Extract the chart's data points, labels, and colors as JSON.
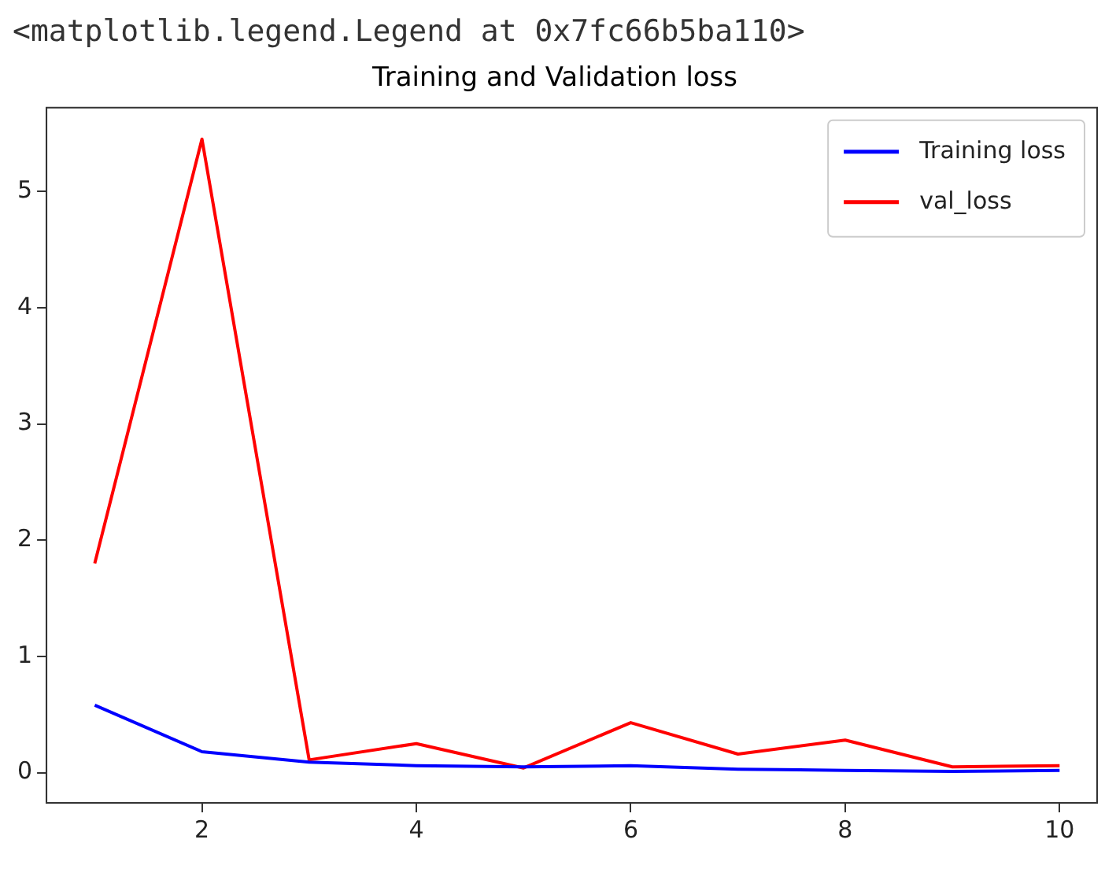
{
  "chart_data": {
    "type": "line",
    "title": "Training and Validation loss",
    "annotations": [
      "<matplotlib.legend.Legend at 0x7fc66b5ba110>"
    ],
    "x": [
      1,
      2,
      3,
      4,
      5,
      6,
      7,
      8,
      9,
      10
    ],
    "series": [
      {
        "name": "Training loss",
        "color": "#0000ff",
        "values": [
          0.58,
          0.18,
          0.09,
          0.06,
          0.05,
          0.06,
          0.03,
          0.02,
          0.01,
          0.02
        ]
      },
      {
        "name": "val_loss",
        "color": "#ff0000",
        "values": [
          1.8,
          5.45,
          0.11,
          0.25,
          0.04,
          0.43,
          0.16,
          0.28,
          0.05,
          0.06
        ]
      }
    ],
    "xlim": [
      0.55,
      10.35
    ],
    "xticks": [
      2,
      4,
      6,
      8,
      10
    ],
    "ylim": [
      -0.26,
      5.72
    ],
    "yticks": [
      0,
      1,
      2,
      3,
      4,
      5
    ],
    "grid": false,
    "legend": "top right",
    "marker": "none",
    "line_style": "solid"
  }
}
